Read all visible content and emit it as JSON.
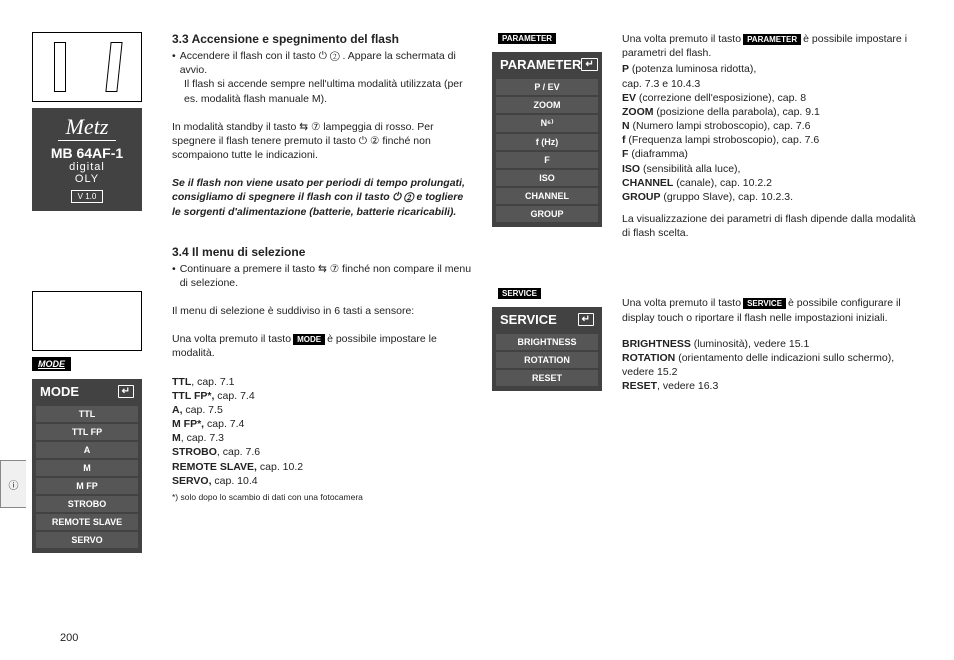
{
  "page_number": "200",
  "tab_label": "ⓘ",
  "sidebar": {
    "brand": "Metz",
    "model": "MB 64AF-1",
    "sub1": "digital",
    "sub2": "OLY",
    "version": "V 1.0",
    "mode_label": "MODE"
  },
  "mode_panel": {
    "title": "MODE",
    "items": [
      "TTL",
      "TTL FP",
      "A",
      "M",
      "M FP",
      "STROBO",
      "REMOTE SLAVE",
      "SERVO"
    ]
  },
  "param_panel": {
    "badge": "PARAMETER",
    "title": "PARAMETER",
    "items": [
      "P / EV",
      "ZOOM",
      "N⁶⁾",
      "f (Hz)",
      "F",
      "ISO",
      "CHANNEL",
      "GROUP"
    ]
  },
  "service_panel": {
    "badge": "SERVICE",
    "title": "SERVICE",
    "items": [
      "BRIGHTNESS",
      "ROTATION",
      "RESET"
    ]
  },
  "mid": {
    "h33": "3.3 Accensione e spegnimento del flash",
    "b33_1": "Accendere il flash con il tasto ⏻ ② . Appare la schermata di avvio.",
    "b33_2": "Il flash si accende sempre nell'ultima modalità utilizzata (per es. modalità flash manuale M).",
    "p33_1": "In modalità standby il tasto ⇆ ⑦  lampeggia di rosso. Per spegnere il flash tenere premuto il tasto ⏻ ②  finché non scompaiono tutte le indicazioni.",
    "p33_ital": "Se il flash non viene usato per periodi di tempo prolungati, consigliamo di spegnere il flash con il tasto ⏻ ② e togliere le sorgenti d'alimentazione (batterie, batterie ricaricabili).",
    "h34": "3.4 Il menu di selezione",
    "b34_1": "Continuare a premere il tasto ⇆ ⑦ finché non compare il menu di selezione.",
    "p34_1": "Il menu di selezione è suddiviso in 6 tasti a sensore:",
    "p34_2a": "Una volta premuto il tasto",
    "p34_2b": "è possibile impostare le modalità.",
    "list34": [
      {
        "b": "TTL",
        "t": ", cap. 7.1"
      },
      {
        "b": "TTL FP*,",
        "t": " cap. 7.4"
      },
      {
        "b": "A,",
        "t": " cap.  7.5"
      },
      {
        "b": "M FP*,",
        "t": "  cap. 7.4"
      },
      {
        "b": "M",
        "t": ", cap.  7.3"
      },
      {
        "b": "STROBO",
        "t": ", cap.  7.6"
      },
      {
        "b": "REMOTE SLAVE,",
        "t": " cap.  10.2"
      },
      {
        "b": "SERVO,",
        "t": " cap.  10.4"
      }
    ],
    "foot34": "*) solo dopo lo scambio di dati con una fotocamera"
  },
  "right": {
    "p1a": "Una volta premuto il tasto",
    "p1b": "è possi­bile impostare i parametri del flash.",
    "list_param": [
      {
        "b": "P",
        "t": " (potenza luminosa ridotta),"
      },
      {
        "b": "",
        "t": "cap. 7.3 e 10.4.3"
      },
      {
        "b": "EV",
        "t": " (correzione dell'esposizione), cap. 8"
      },
      {
        "b": "ZOOM",
        "t": " (posizione della parabola), cap. 9.1"
      },
      {
        "b": "N",
        "t": " (Numero lampi stroboscopio), cap. 7.6"
      },
      {
        "b": "f",
        "t": " (Frequenza lampi stroboscopio), cap. 7.6"
      },
      {
        "b": "F",
        "t": " (diaframma)"
      },
      {
        "b": "ISO",
        "t": " (sensibilità alla luce),"
      },
      {
        "b": "CHANNEL",
        "t": " (canale), cap.  10.2.2"
      },
      {
        "b": "GROUP",
        "t": " (gruppo Slave), cap.  10.2.3."
      }
    ],
    "p2": "La visualizzazione dei parametri di flash dipende dalla modalità di flash scelta.",
    "p3a": "Una volta premuto il tasto",
    "p3b": "è possibile configurare il display touch o riportare il flash nelle impostazioni iniziali.",
    "list_serv": [
      {
        "b": "BRIGHTNESS",
        "t": " (luminosità), vedere 15.1"
      },
      {
        "b": "ROTATION",
        "t": " (orientamento delle indicazioni sullo schermo), vedere 15.2"
      },
      {
        "b": "RESET",
        "t": ", vedere 16.3"
      }
    ]
  },
  "badges": {
    "mode": "MODE",
    "parameter": "PARAMETER",
    "service": "SERVICE"
  }
}
